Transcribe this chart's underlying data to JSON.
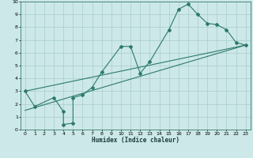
{
  "xlabel": "Humidex (Indice chaleur)",
  "xlim": [
    -0.5,
    23.5
  ],
  "ylim": [
    0,
    10
  ],
  "xticks": [
    0,
    1,
    2,
    3,
    4,
    5,
    6,
    7,
    8,
    9,
    10,
    11,
    12,
    13,
    14,
    15,
    16,
    17,
    18,
    19,
    20,
    21,
    22,
    23
  ],
  "yticks": [
    0,
    1,
    2,
    3,
    4,
    5,
    6,
    7,
    8,
    9,
    10
  ],
  "background_color": "#cce8e8",
  "grid_color": "#aacccc",
  "line_color": "#2d7a6a",
  "line1_x": [
    0,
    1,
    3,
    4,
    4,
    5,
    5,
    6,
    7,
    8,
    10,
    11,
    12,
    13,
    15,
    16,
    17,
    18,
    19,
    20,
    21,
    22,
    23
  ],
  "line1_y": [
    3.0,
    1.8,
    2.5,
    1.4,
    0.4,
    0.5,
    2.5,
    2.7,
    3.3,
    4.5,
    6.5,
    6.5,
    4.4,
    5.3,
    7.8,
    9.4,
    9.8,
    9.0,
    8.3,
    8.2,
    7.8,
    6.8,
    6.6
  ],
  "line2_x": [
    0,
    23
  ],
  "line2_y": [
    3.0,
    6.6
  ],
  "line3_x": [
    0,
    23
  ],
  "line3_y": [
    1.5,
    6.6
  ]
}
